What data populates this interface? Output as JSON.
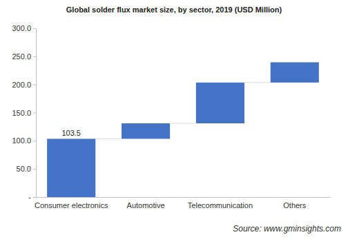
{
  "chart_data": {
    "type": "waterfall",
    "title": "Global solder flux market size, by sector, 2019 (USD Million)",
    "categories": [
      "Consumer electronics",
      "Automotive",
      "Telecommunication",
      "Others"
    ],
    "values": [
      103.5,
      27.5,
      72.5,
      36
    ],
    "value_labels": [
      "103.5",
      null,
      null,
      null
    ],
    "color": "#4472c4",
    "ylim": [
      0,
      300
    ],
    "yticks": [
      {
        "value": 0,
        "label": "-"
      },
      {
        "value": 50,
        "label": "50.0"
      },
      {
        "value": 100,
        "label": "100.0"
      },
      {
        "value": 150,
        "label": "150.0"
      },
      {
        "value": 200,
        "label": "200.0"
      },
      {
        "value": 250,
        "label": "250.0"
      },
      {
        "value": 300,
        "label": "300.0"
      }
    ],
    "grid": false,
    "source": "Source: www.gminsights.com"
  }
}
